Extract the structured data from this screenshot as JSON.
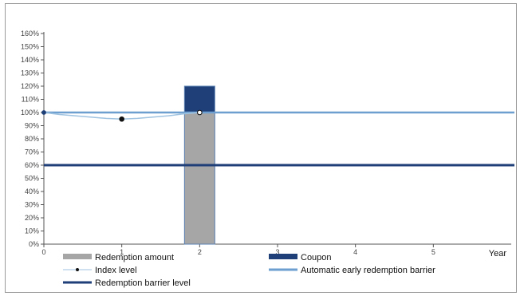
{
  "chart_data": {
    "type": "bar",
    "y_ticks": [
      "0%",
      "10%",
      "20%",
      "30%",
      "40%",
      "50%",
      "60%",
      "70%",
      "80%",
      "90%",
      "100%",
      "110%",
      "120%",
      "130%",
      "140%",
      "150%",
      "160%"
    ],
    "x_ticks": [
      "0",
      "1",
      "2",
      "3",
      "4",
      "5"
    ],
    "x_axis_end_label": "Year",
    "ylim": [
      0,
      160
    ],
    "xlim": [
      0,
      6
    ],
    "bars": [
      {
        "x": 2,
        "redemption_amount": 100,
        "coupon": 20
      }
    ],
    "index_level": {
      "x": [
        0,
        0.2,
        0.4,
        0.6,
        0.8,
        1.0,
        1.2,
        1.4,
        1.6,
        1.8,
        2.0
      ],
      "y": [
        100,
        98.5,
        97.5,
        96.5,
        95.5,
        95,
        95.5,
        96.5,
        97.5,
        99,
        100
      ],
      "markers": [
        {
          "x": 1,
          "y": 95
        },
        {
          "x": 2,
          "y": 100
        }
      ]
    },
    "automatic_early_redemption_barrier": 100,
    "redemption_barrier_level": 60,
    "legend": [
      {
        "key": "redemption",
        "label": "Redemption amount",
        "color": "#a6a6a6",
        "style": "bar"
      },
      {
        "key": "coupon",
        "label": "Coupon",
        "color": "#1f3f78",
        "style": "bar"
      },
      {
        "key": "index",
        "label": "Index level",
        "color": "#9fc3e0",
        "style": "marker-line"
      },
      {
        "key": "aer",
        "label": "Automatic early redemption barrier",
        "color": "#6d9fd0",
        "style": "line"
      },
      {
        "key": "rbl",
        "label": "Redemption barrier level",
        "color": "#1f3f78",
        "style": "line"
      }
    ],
    "colors": {
      "redemption": "#a6a6a6",
      "coupon": "#1f3f78",
      "index": "#9fc3e0",
      "aer": "#6d9fd0",
      "rbl": "#1f3f78"
    }
  }
}
